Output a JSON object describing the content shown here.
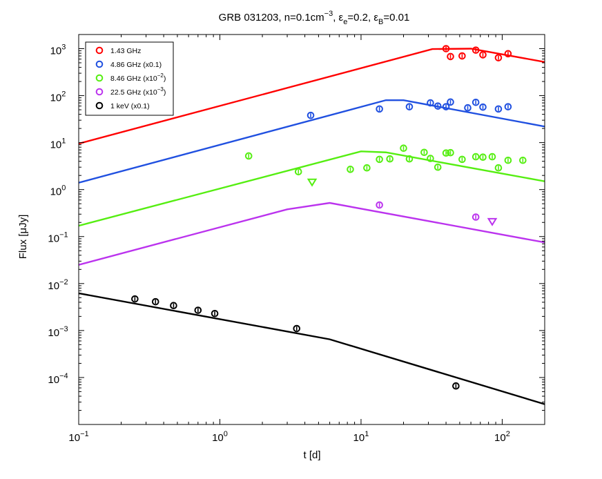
{
  "chart_data": {
    "type": "line",
    "title": {
      "prefix": "GRB 031203, n=0.1cm",
      "prefix_exp": "−3",
      "e_part": ", ε",
      "e_sub": "e",
      "e_val": "=0.2, ε",
      "b_sub": "B",
      "b_val": "=0.01"
    },
    "xlabel": "t [d]",
    "ylabel": "Flux [μJy]",
    "xscale": "log",
    "yscale": "log",
    "xlim": [
      0.1,
      200
    ],
    "ylim": [
      1e-05,
      2000
    ],
    "x_ticks": [
      {
        "value": 0.1,
        "base": "10",
        "exp": "−1"
      },
      {
        "value": 1,
        "base": "10",
        "exp": "0"
      },
      {
        "value": 10,
        "base": "10",
        "exp": "1"
      },
      {
        "value": 100,
        "base": "10",
        "exp": "2"
      }
    ],
    "y_ticks": [
      {
        "value": 0.0001,
        "base": "10",
        "exp": "−4"
      },
      {
        "value": 0.001,
        "base": "10",
        "exp": "−3"
      },
      {
        "value": 0.01,
        "base": "10",
        "exp": "−2"
      },
      {
        "value": 0.1,
        "base": "10",
        "exp": "−1"
      },
      {
        "value": 1,
        "base": "10",
        "exp": "0"
      },
      {
        "value": 10,
        "base": "10",
        "exp": "1"
      },
      {
        "value": 100,
        "base": "10",
        "exp": "2"
      },
      {
        "value": 1000,
        "base": "10",
        "exp": "3"
      }
    ],
    "legend_location": "top-left",
    "series": [
      {
        "name": "1.43 GHz",
        "label_main": "1.43 GHz",
        "label_scale": "",
        "label_exp": "",
        "color": "#ff0000",
        "model": [
          [
            0.1,
            9.5
          ],
          [
            32,
            980
          ],
          [
            60,
            1000
          ],
          [
            200,
            520
          ]
        ],
        "points": [
          [
            40,
            1000
          ],
          [
            43,
            680
          ],
          [
            52,
            700
          ],
          [
            65,
            930
          ],
          [
            73,
            740
          ],
          [
            94,
            640
          ],
          [
            110,
            780
          ]
        ],
        "upper_limits": []
      },
      {
        "name": "4.86 GHz (x0.1)",
        "label_main": "4.86 GHz (x0.1)",
        "label_scale": "",
        "label_exp": "",
        "color": "#2050e0",
        "model": [
          [
            0.1,
            1.4
          ],
          [
            15,
            80
          ],
          [
            20,
            80
          ],
          [
            200,
            22
          ]
        ],
        "points": [
          [
            4.4,
            38
          ],
          [
            13.5,
            52
          ],
          [
            22,
            58
          ],
          [
            31,
            70
          ],
          [
            35,
            60
          ],
          [
            40,
            58
          ],
          [
            43,
            73
          ],
          [
            57,
            55
          ],
          [
            65,
            72
          ],
          [
            73,
            57
          ],
          [
            94,
            52
          ],
          [
            110,
            58
          ]
        ],
        "upper_limits": []
      },
      {
        "name": "8.46 GHz (x10^-2)",
        "label_main": "8.46 GHz",
        "label_scale": " (x10",
        "label_exp": "−2",
        "color": "#55ee11",
        "model": [
          [
            0.1,
            0.17
          ],
          [
            10,
            6.5
          ],
          [
            15,
            6.2
          ],
          [
            200,
            1.5
          ]
        ],
        "points": [
          [
            1.6,
            5.2
          ],
          [
            3.6,
            2.4
          ],
          [
            8.4,
            2.7
          ],
          [
            11,
            2.9
          ],
          [
            13.5,
            4.4
          ],
          [
            16,
            4.5
          ],
          [
            20,
            7.6
          ],
          [
            22,
            4.5
          ],
          [
            28,
            6.2
          ],
          [
            31,
            4.6
          ],
          [
            35,
            3.0
          ],
          [
            40,
            6.0
          ],
          [
            43,
            6.1
          ],
          [
            52,
            4.4
          ],
          [
            65,
            5.0
          ],
          [
            73,
            4.9
          ],
          [
            85,
            5.0
          ],
          [
            94,
            2.9
          ],
          [
            110,
            4.2
          ],
          [
            140,
            4.2
          ]
        ],
        "upper_limits": [
          [
            4.5,
            1.45
          ]
        ]
      },
      {
        "name": "22.5 GHz (x10^-3)",
        "label_main": "22.5 GHz",
        "label_scale": " (x10",
        "label_exp": "−3",
        "color": "#bb33ee",
        "model": [
          [
            0.1,
            0.025
          ],
          [
            3,
            0.38
          ],
          [
            6,
            0.52
          ],
          [
            200,
            0.075
          ]
        ],
        "points": [
          [
            13.5,
            0.47
          ],
          [
            65,
            0.26
          ]
        ],
        "upper_limits": [
          [
            85,
            0.21
          ]
        ]
      },
      {
        "name": "1 keV (x0.1)",
        "label_main": "1 keV (x0.1)",
        "label_scale": "",
        "label_exp": "",
        "color": "#000000",
        "model": [
          [
            0.1,
            0.0062
          ],
          [
            6,
            0.00065
          ],
          [
            200,
            2.7e-05
          ]
        ],
        "points": [
          [
            0.25,
            0.0047
          ],
          [
            0.35,
            0.0041
          ],
          [
            0.47,
            0.0034
          ],
          [
            0.7,
            0.0027
          ],
          [
            0.92,
            0.0023
          ],
          [
            3.5,
            0.0011
          ],
          [
            47,
            6.6e-05
          ]
        ],
        "upper_limits": []
      }
    ]
  }
}
